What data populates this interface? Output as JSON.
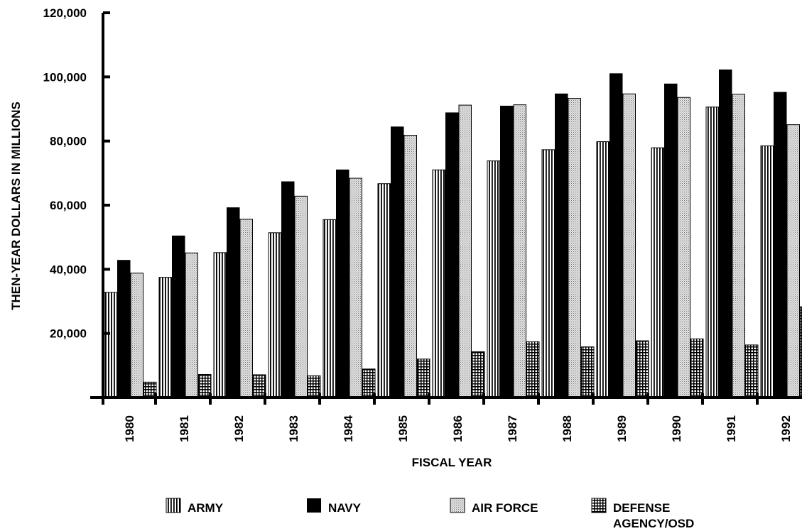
{
  "chart_data": {
    "type": "bar",
    "title": "",
    "xlabel": "FISCAL YEAR",
    "ylabel": "THEN-YEAR DOLLARS IN MILLIONS",
    "ylim": [
      0,
      120000
    ],
    "yticks": [
      "20,000",
      "40,000",
      "60,000",
      "80,000",
      "100,000",
      "120,000"
    ],
    "categories": [
      "1980",
      "1981",
      "1982",
      "1983",
      "1984",
      "1985",
      "1986",
      "1987",
      "1988",
      "1989",
      "1990",
      "1991",
      "1992"
    ],
    "series": [
      {
        "name": "ARMY",
        "values": [
          32800,
          37500,
          45200,
          51400,
          55500,
          66700,
          71000,
          73800,
          77300,
          79800,
          77900,
          90600,
          78500
        ]
      },
      {
        "name": "NAVY",
        "values": [
          42800,
          50400,
          59200,
          67300,
          71000,
          84400,
          88800,
          90900,
          94700,
          101000,
          97800,
          102200,
          95200
        ]
      },
      {
        "name": "AIR FORCE",
        "values": [
          38800,
          45100,
          55600,
          62800,
          68400,
          81800,
          91200,
          91300,
          93300,
          94700,
          93600,
          94600,
          85100
        ]
      },
      {
        "name": "DEFENSE AGENCY/OSD",
        "values": [
          4800,
          7200,
          7100,
          6800,
          8900,
          12000,
          14300,
          17400,
          15800,
          17700,
          18300,
          16400,
          28300
        ]
      }
    ],
    "grid": false,
    "legend_position": "bottom",
    "colors": {
      "army": "#ffffff",
      "navy": "#000000",
      "air_force": "#d0d0d0",
      "defense": "#ffffff"
    },
    "patterns": {
      "army": "vertical-stripes",
      "navy": "solid",
      "air_force": "stipple",
      "defense": "grid"
    }
  }
}
